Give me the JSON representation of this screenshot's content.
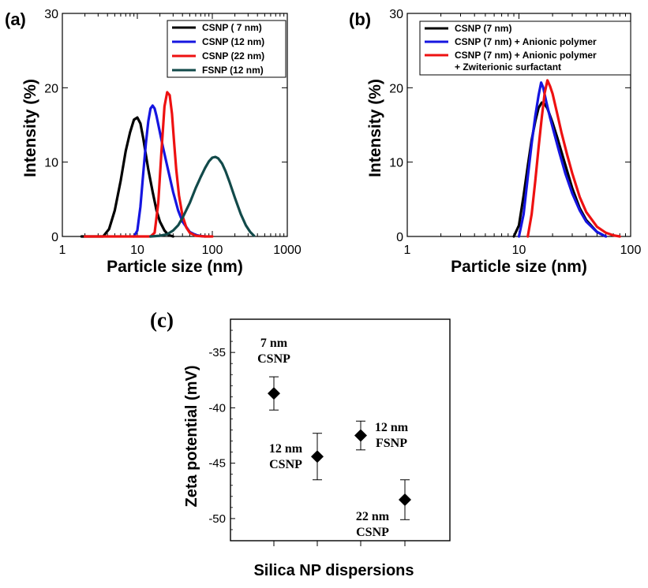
{
  "chart_data": [
    {
      "type": "line",
      "panel_label": "(a)",
      "xscale": "log",
      "xlim": [
        1,
        1000
      ],
      "ylim": [
        0,
        30
      ],
      "xlabel": "Particle size (nm)",
      "ylabel": "Intensity (%)",
      "xticks": [
        "1",
        "10",
        "100",
        "1000"
      ],
      "yticks": [
        "0",
        "10",
        "20",
        "30"
      ],
      "legend_position": "top-right",
      "series": [
        {
          "name": "CSNP ( 7 nm)",
          "color": "#000000",
          "x": [
            1.8,
            3.5,
            4.2,
            5.0,
            6.0,
            7.0,
            8.0,
            9.0,
            10.0,
            11.0,
            12.0,
            13.0,
            14.0,
            16.0,
            18.0,
            20.0,
            23.0,
            26.0,
            30.0
          ],
          "y": [
            0,
            0,
            1.0,
            3.5,
            7.5,
            11.5,
            14.0,
            15.7,
            16.0,
            15.2,
            13.2,
            11.0,
            9.0,
            6.0,
            3.5,
            2.0,
            0.8,
            0.2,
            0
          ]
        },
        {
          "name": "CSNP (12 nm)",
          "color": "#1515e0",
          "x": [
            9.0,
            10.0,
            11.0,
            12.0,
            13.0,
            14.0,
            15.0,
            16.0,
            17.0,
            18.0,
            20.0,
            22.0,
            25.0,
            30.0,
            35.0,
            40.0,
            50.0,
            60.0,
            70.0,
            80.0
          ],
          "y": [
            0,
            0.8,
            4.0,
            8.5,
            12.5,
            15.5,
            17.2,
            17.6,
            17.2,
            16.2,
            14.0,
            12.0,
            9.5,
            6.0,
            3.5,
            2.0,
            0.6,
            0.2,
            0.05,
            0
          ]
        },
        {
          "name": "CSNP (22 nm)",
          "color": "#ee1111",
          "x": [
            2.0,
            10.0,
            15.0,
            17.0,
            19.0,
            21.0,
            23.0,
            25.0,
            27.0,
            29.0,
            31.0,
            33.0,
            36.0,
            40.0,
            45.0,
            50.0,
            60.0,
            80.0,
            100.0
          ],
          "y": [
            0,
            0,
            0,
            0.5,
            4.5,
            11.5,
            17.5,
            19.4,
            19.0,
            16.5,
            12.5,
            9.0,
            5.5,
            2.8,
            1.2,
            0.5,
            0.1,
            0,
            0
          ]
        },
        {
          "name": "FSNP (12 nm)",
          "color": "#124a4a",
          "x": [
            15.0,
            20.0,
            25.0,
            30.0,
            35.0,
            40.0,
            50.0,
            60.0,
            70.0,
            80.0,
            90.0,
            100.0,
            110.0,
            120.0,
            135.0,
            150.0,
            170.0,
            200.0,
            240.0,
            280.0,
            320.0,
            360.0
          ],
          "y": [
            0,
            0.1,
            0.3,
            0.8,
            1.5,
            2.5,
            4.5,
            6.5,
            8.0,
            9.2,
            10.1,
            10.6,
            10.7,
            10.5,
            9.8,
            8.8,
            7.3,
            5.2,
            3.0,
            1.5,
            0.6,
            0.1
          ]
        }
      ]
    },
    {
      "type": "line",
      "panel_label": "(b)",
      "xscale": "log",
      "xlim": [
        1,
        100
      ],
      "ylim": [
        0,
        30
      ],
      "xlabel": "Particle size (nm)",
      "ylabel": "Intensity (%)",
      "xticks": [
        "1",
        "10",
        "100"
      ],
      "yticks": [
        "0",
        "10",
        "20",
        "30"
      ],
      "legend_position": "top",
      "series": [
        {
          "name": "CSNP (7 nm)",
          "color": "#000000",
          "x": [
            9.0,
            10.0,
            11.0,
            12.0,
            13.0,
            14.0,
            15.0,
            16.0,
            17.0,
            18.0,
            20.0,
            22.0,
            25.0,
            30.0,
            35.0,
            40.0,
            50.0,
            60.0
          ],
          "y": [
            0,
            1.5,
            5.5,
            9.5,
            13.0,
            15.5,
            17.3,
            18.0,
            17.8,
            17.2,
            15.3,
            13.3,
            10.5,
            6.5,
            3.8,
            2.2,
            0.6,
            0
          ]
        },
        {
          "name": "CSNP (7 nm) + Anionic polymer",
          "color": "#1515e0",
          "x": [
            10.0,
            11.0,
            12.0,
            13.0,
            14.0,
            15.0,
            15.8,
            16.5,
            17.5,
            19.0,
            21.0,
            23.0,
            26.0,
            30.0,
            35.0,
            40.0,
            50.0,
            60.0
          ],
          "y": [
            0,
            3.0,
            8.0,
            12.5,
            16.2,
            19.0,
            20.7,
            20.0,
            18.2,
            16.0,
            13.5,
            11.3,
            8.5,
            5.8,
            3.5,
            2.0,
            0.6,
            0
          ]
        },
        {
          "name": "CSNP (7 nm) + Anionic polymer + Zwiterionic surfactant",
          "color": "#ee1111",
          "x": [
            12.0,
            13.0,
            14.0,
            15.0,
            16.0,
            17.0,
            18.0,
            19.0,
            20.0,
            22.0,
            24.0,
            27.0,
            30.0,
            35.0,
            40.0,
            50.0,
            60.0,
            70.0,
            80.0
          ],
          "y": [
            0,
            3.0,
            7.5,
            12.0,
            16.0,
            19.3,
            21.0,
            20.2,
            19.2,
            16.5,
            14.0,
            11.0,
            8.5,
            5.3,
            3.3,
            1.3,
            0.5,
            0.15,
            0
          ]
        }
      ]
    },
    {
      "type": "scatter",
      "panel_label": "(c)",
      "xlabel": "Silica NP dispersions",
      "ylabel": "Zeta potential (mV)",
      "ylim": [
        -52,
        -32
      ],
      "yticks": [
        "-35",
        "-40",
        "-45",
        "-50"
      ],
      "categories": [
        "7 nm CSNP",
        "12 nm CSNP",
        "12 nm FSNP",
        "22 nm CSNP"
      ],
      "points": [
        {
          "label_line1": "7 nm",
          "label_line2": "CSNP",
          "value": -38.7,
          "err_low": -40.2,
          "err_high": -37.2
        },
        {
          "label_line1": "12 nm",
          "label_line2": "CSNP",
          "value": -44.4,
          "err_low": -46.5,
          "err_high": -42.3
        },
        {
          "label_line1": "12 nm",
          "label_line2": "FSNP",
          "value": -42.5,
          "err_low": -43.8,
          "err_high": -41.2
        },
        {
          "label_line1": "22 nm",
          "label_line2": "CSNP",
          "value": -48.3,
          "err_low": -50.1,
          "err_high": -46.5
        }
      ]
    }
  ]
}
